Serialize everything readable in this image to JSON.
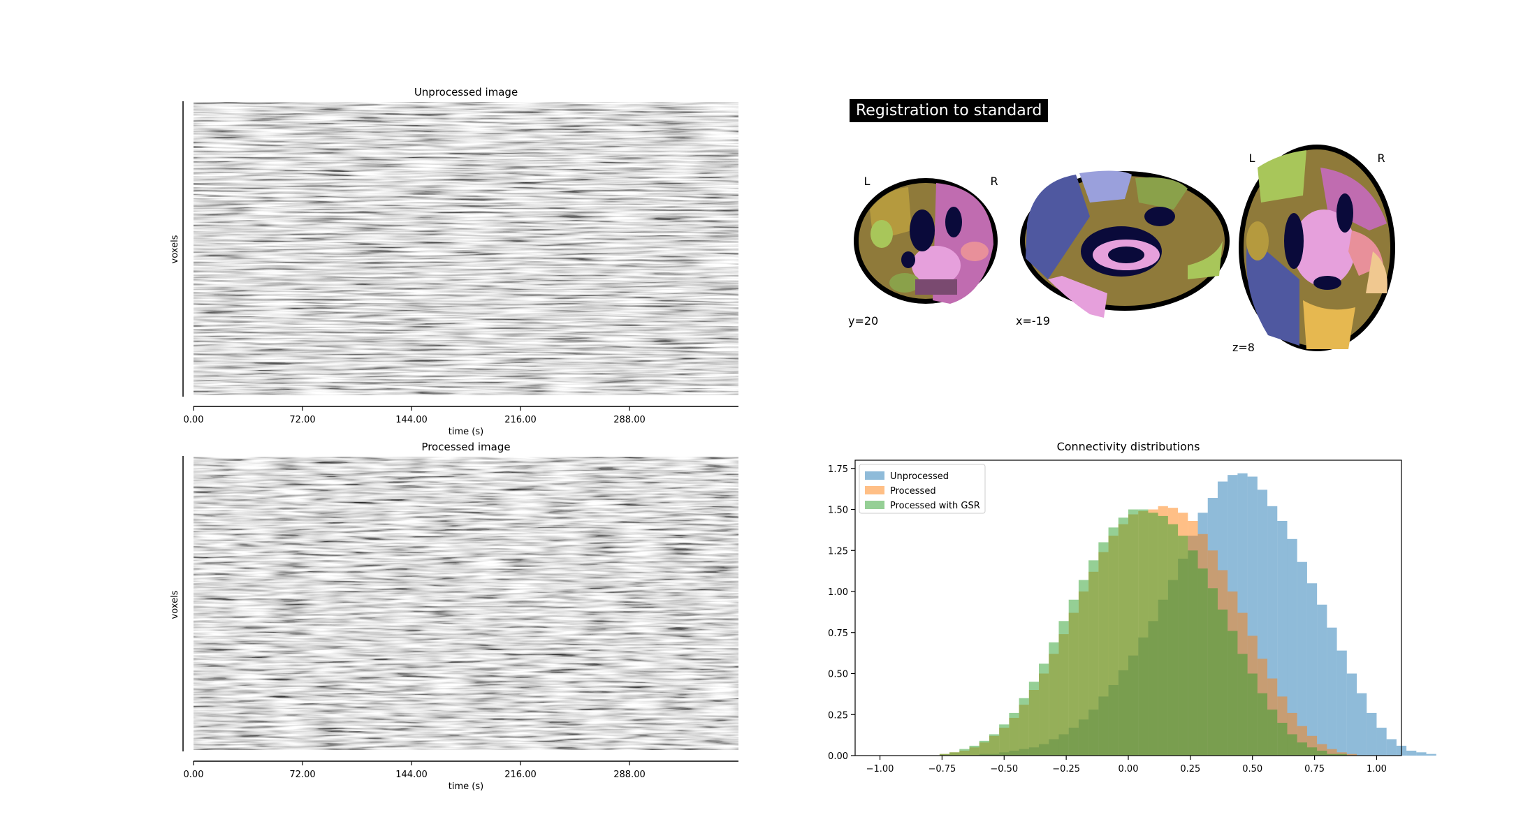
{
  "carpet_top": {
    "title": "Unprocessed image",
    "ylabel": "voxels",
    "xlabel": "time (s)",
    "ticks": [
      "0.00",
      "72.00",
      "144.00",
      "216.00",
      "288.00"
    ],
    "tick_values": [
      0,
      72,
      144,
      216,
      288
    ],
    "xmax": 360
  },
  "carpet_bottom": {
    "title": "Processed image",
    "ylabel": "voxels",
    "xlabel": "time (s)",
    "ticks": [
      "0.00",
      "72.00",
      "144.00",
      "216.00",
      "288.00"
    ],
    "tick_values": [
      0,
      72,
      144,
      216,
      288
    ],
    "xmax": 360
  },
  "registration": {
    "title": "Registration to standard",
    "coronal": {
      "coord": "y=20",
      "left": "L",
      "right": "R"
    },
    "sagittal": {
      "coord": "x=-19"
    },
    "axial": {
      "coord": "z=8",
      "left": "L",
      "right": "R"
    }
  },
  "colors": {
    "unprocessed": "#1f77b4",
    "processed": "#ff7f0e",
    "gsr": "#2ca02c"
  },
  "chart_data": {
    "type": "bar",
    "title": "Connectivity distributions",
    "xlabel": "",
    "ylabel": "",
    "xlim": [
      -1.1,
      1.1
    ],
    "ylim": [
      0,
      1.8
    ],
    "xticks": [
      -1.0,
      -0.75,
      -0.5,
      -0.25,
      0.0,
      0.25,
      0.5,
      0.75,
      1.0
    ],
    "xtick_labels": [
      "−1.00",
      "−0.75",
      "−0.50",
      "−0.25",
      "0.00",
      "0.25",
      "0.50",
      "0.75",
      "1.00"
    ],
    "yticks": [
      0,
      0.25,
      0.5,
      0.75,
      1.0,
      1.25,
      1.5,
      1.75
    ],
    "ytick_labels": [
      "0.00",
      "0.25",
      "0.50",
      "0.75",
      "1.00",
      "1.25",
      "1.50",
      "1.75"
    ],
    "legend": "top-left",
    "bin_width": 0.04,
    "series": [
      {
        "name": "Unprocessed",
        "bin_start": -0.6,
        "values": [
          0.01,
          0.01,
          0.02,
          0.03,
          0.04,
          0.05,
          0.07,
          0.1,
          0.13,
          0.17,
          0.22,
          0.28,
          0.36,
          0.43,
          0.52,
          0.61,
          0.72,
          0.82,
          0.95,
          1.07,
          1.2,
          1.34,
          1.48,
          1.57,
          1.67,
          1.71,
          1.72,
          1.7,
          1.62,
          1.52,
          1.43,
          1.32,
          1.18,
          1.05,
          0.92,
          0.78,
          0.64,
          0.5,
          0.38,
          0.26,
          0.17,
          0.1,
          0.06,
          0.03,
          0.02,
          0.01
        ]
      },
      {
        "name": "Processed",
        "bin_start": -0.76,
        "values": [
          0.01,
          0.02,
          0.03,
          0.05,
          0.08,
          0.12,
          0.17,
          0.23,
          0.31,
          0.4,
          0.5,
          0.62,
          0.74,
          0.87,
          1.0,
          1.12,
          1.24,
          1.34,
          1.41,
          1.47,
          1.49,
          1.5,
          1.52,
          1.51,
          1.48,
          1.43,
          1.35,
          1.25,
          1.13,
          1.0,
          0.87,
          0.73,
          0.59,
          0.47,
          0.36,
          0.26,
          0.18,
          0.12,
          0.07,
          0.04,
          0.02,
          0.01
        ]
      },
      {
        "name": "Processed with GSR",
        "bin_start": -0.76,
        "values": [
          0.01,
          0.02,
          0.04,
          0.06,
          0.09,
          0.13,
          0.19,
          0.26,
          0.35,
          0.45,
          0.56,
          0.69,
          0.82,
          0.95,
          1.07,
          1.19,
          1.3,
          1.39,
          1.45,
          1.5,
          1.5,
          1.48,
          1.46,
          1.41,
          1.34,
          1.25,
          1.14,
          1.02,
          0.89,
          0.76,
          0.62,
          0.5,
          0.38,
          0.28,
          0.2,
          0.13,
          0.08,
          0.05,
          0.03,
          0.01,
          0.01
        ]
      }
    ]
  }
}
